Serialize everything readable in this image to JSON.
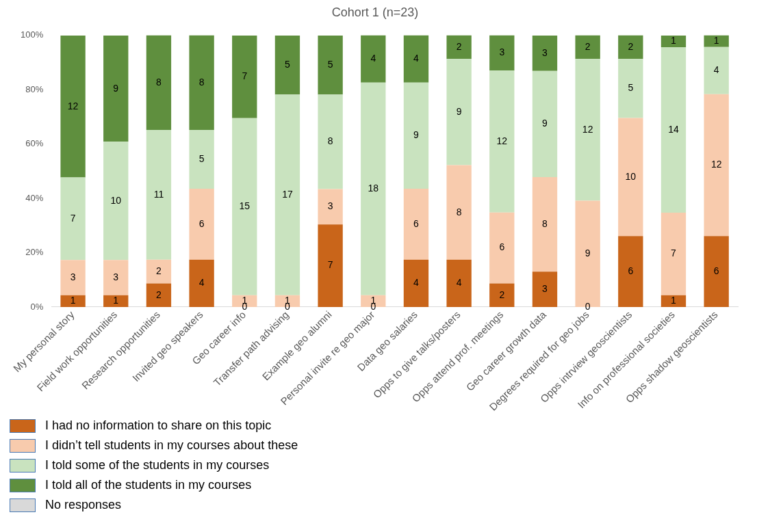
{
  "chart_data": {
    "type": "bar",
    "title": "Cohort 1 (n=23)",
    "stacked": true,
    "categories": [
      "My personal story",
      "Field work opportunities",
      "Research opportunities",
      "Invited geo speakers",
      "Geo career info",
      "Transfer path advising",
      "Example geo alumni",
      "Personal invite re geo major",
      "Data geo salaries",
      "Opps to give talks/posters",
      "Opps attend prof. meetings",
      "Geo career growth data",
      "Degrees required for geo jobs",
      "Opps intrview geoscientists",
      "Info on professional societies",
      "Opps shadow geoscientists"
    ],
    "ylim": [
      0,
      100
    ],
    "yticks": [
      {
        "value": 0,
        "label": "0%"
      },
      {
        "value": 20,
        "label": "20%"
      },
      {
        "value": 40,
        "label": "40%"
      },
      {
        "value": 60,
        "label": "60%"
      },
      {
        "value": 80,
        "label": "80%"
      },
      {
        "value": 100,
        "label": "100%"
      }
    ],
    "grid": false,
    "legend": "bottom left",
    "series": [
      {
        "name": "I had no information to share on this topic",
        "color": "#c9651a",
        "values": [
          4.3,
          4.3,
          8.7,
          17.4,
          0,
          0,
          30.4,
          0,
          17.4,
          17.4,
          8.7,
          13.0,
          0,
          26.1,
          4.3,
          26.1
        ]
      },
      {
        "name": "I didn’t tell students in my courses about these",
        "color": "#f8cbad",
        "values": [
          13.0,
          13.0,
          8.7,
          26.1,
          4.3,
          4.3,
          13.0,
          4.3,
          26.1,
          34.8,
          26.1,
          34.8,
          39.1,
          43.5,
          30.4,
          52.2
        ]
      },
      {
        "name": "I told some of the students in my courses",
        "color": "#c9e3bf",
        "values": [
          30.4,
          43.5,
          47.8,
          21.7,
          65.2,
          73.9,
          34.8,
          78.3,
          39.1,
          39.1,
          52.2,
          39.1,
          52.2,
          21.7,
          60.9,
          17.4
        ]
      },
      {
        "name": "I told all of the students in my courses",
        "color": "#5f8f3e",
        "values": [
          52.2,
          39.1,
          34.8,
          34.8,
          30.4,
          21.7,
          21.7,
          17.4,
          17.4,
          8.7,
          13.0,
          13.0,
          8.7,
          8.7,
          4.3,
          4.3
        ]
      },
      {
        "name": "No responses",
        "color": "#d9d9d9",
        "values": [
          null,
          null,
          null,
          null,
          null,
          null,
          null,
          null,
          null,
          null,
          null,
          null,
          null,
          null,
          null,
          null
        ]
      }
    ],
    "annotations": [
      "1",
      "3",
      "7",
      "12",
      "1",
      "3",
      "10",
      "9",
      "2",
      "2",
      "11",
      "8",
      "4",
      "6",
      "5",
      "8",
      "0",
      "1",
      "15",
      "7",
      "0",
      "1",
      "17",
      "5",
      "7",
      "3",
      "8",
      "5",
      "0",
      "1",
      "18",
      "4",
      "4",
      "6",
      "9",
      "4",
      "4",
      "8",
      "9",
      "2",
      "2",
      "6",
      "12",
      "3",
      "3",
      "8",
      "9",
      "3",
      "0",
      "9",
      "12",
      "2",
      "6",
      "10",
      "5",
      "2",
      "1",
      "7",
      "14",
      "1",
      "6",
      "12",
      "4",
      "1"
    ]
  }
}
